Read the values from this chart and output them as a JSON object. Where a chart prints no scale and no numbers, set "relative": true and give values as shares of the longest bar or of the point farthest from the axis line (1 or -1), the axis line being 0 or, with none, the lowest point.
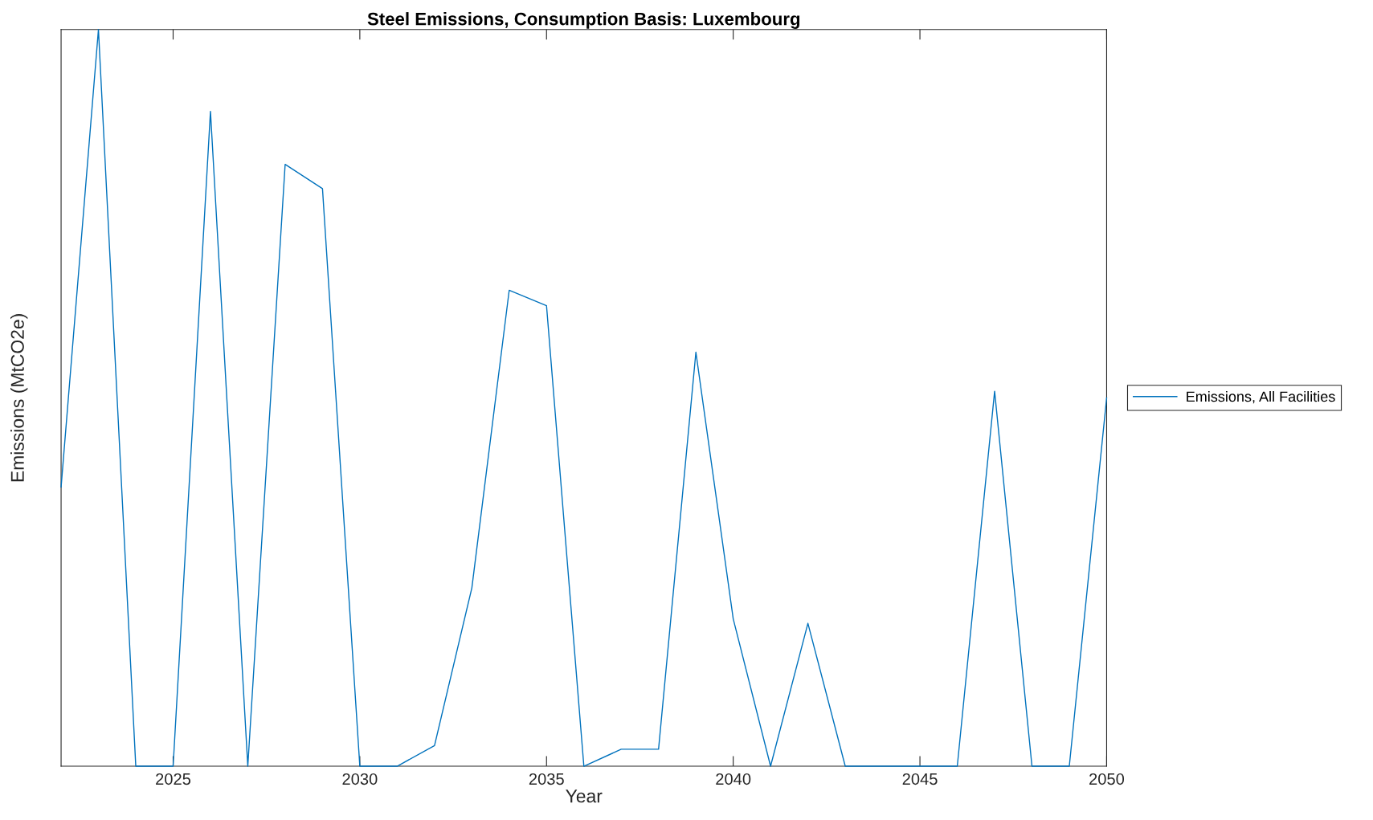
{
  "chart_data": {
    "type": "line",
    "title": "Steel Emissions, Consumption Basis: Luxembourg",
    "xlabel": "Year",
    "ylabel": "Emissions (MtCO2e)",
    "x": [
      2022,
      2023,
      2024,
      2025,
      2026,
      2027,
      2028,
      2029,
      2030,
      2031,
      2032,
      2033,
      2034,
      2035,
      2036,
      2037,
      2038,
      2039,
      2040,
      2041,
      2042,
      2043,
      2044,
      2045,
      2046,
      2047,
      2048,
      2049,
      2050
    ],
    "series": [
      {
        "name": "Emissions, All Facilities",
        "color": "#0072bd",
        "values": [
          0.379,
          1.0,
          0,
          0,
          0.889,
          0,
          0.817,
          0.784,
          0,
          0,
          0.028,
          0.242,
          0.646,
          0.625,
          0,
          0.023,
          0.023,
          0.562,
          0.2,
          0,
          0.194,
          0,
          0,
          0,
          0,
          0.509,
          0,
          0,
          0.5
        ]
      }
    ],
    "relative": true,
    "xlim": [
      2022,
      2050
    ],
    "xticks": [
      2025,
      2030,
      2035,
      2040,
      2045,
      2050
    ],
    "legend": "right",
    "grid": false,
    "marker": "none",
    "line_style": "solid"
  }
}
